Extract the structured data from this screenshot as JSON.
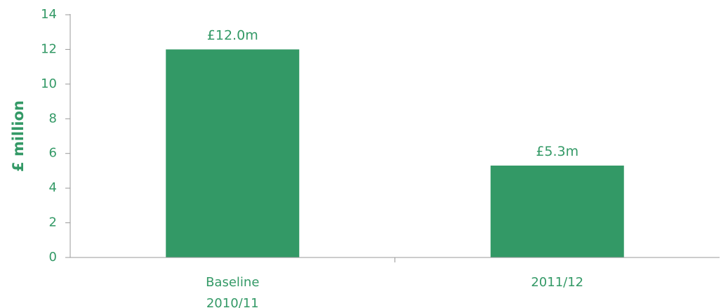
{
  "chart_data": {
    "type": "bar",
    "categories": [
      [
        "Baseline",
        "2010/11"
      ],
      [
        "2011/12"
      ]
    ],
    "values": [
      12.0,
      5.3
    ],
    "data_labels": [
      "£12.0m",
      "£5.3m"
    ],
    "title": "",
    "xlabel": "",
    "ylabel": "£ million",
    "ylim": [
      0,
      14
    ],
    "yticks": [
      0,
      2,
      4,
      6,
      8,
      10,
      12,
      14
    ],
    "grid": false,
    "legend": "none",
    "colors": {
      "bar": "#339966",
      "text": "#339966",
      "axis": "#999999"
    }
  }
}
